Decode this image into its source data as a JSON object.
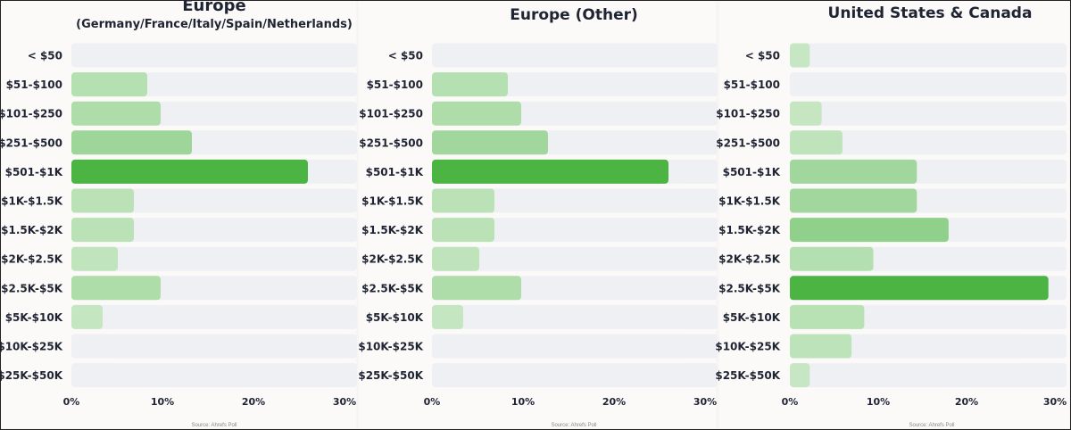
{
  "colors": {
    "track": "#eff0f4",
    "bar_strong": "#4bb443",
    "bar_light": "#c9e8c6"
  },
  "chart_data": [
    {
      "type": "bar",
      "title": "Europe",
      "subtitle": "(Germany/France/Italy/Spain/Netherlands)",
      "categories": [
        "< $50",
        "$51-$100",
        "$101-$250",
        "$251-$500",
        "$501-$1K",
        "$1K-$1.5K",
        "$1.5K-$2K",
        "$2K-$2.5K",
        "$2.5K-$5K",
        "$5K-$10K",
        "$10K-$25K",
        "$25K-$50K"
      ],
      "values": [
        0,
        8.5,
        10,
        13.5,
        26.5,
        7,
        7,
        5.2,
        10,
        3.5,
        0,
        0
      ],
      "xlim": [
        0,
        32
      ],
      "ticks": [
        "0%",
        "10%",
        "20%",
        "30%"
      ],
      "tick_values": [
        0,
        10,
        20,
        30
      ],
      "source": "Source: Ahrefs Poll"
    },
    {
      "type": "bar",
      "title": "Europe (Other)",
      "subtitle": "",
      "categories": [
        "< $50",
        "$51-$100",
        "$101-$250",
        "$251-$500",
        "$501-$1K",
        "$1K-$1.5K",
        "$1.5K-$2K",
        "$2K-$2.5K",
        "$2.5K-$5K",
        "$5K-$10K",
        "$10K-$25K",
        "$25K-$50K"
      ],
      "values": [
        0,
        8.5,
        10,
        13,
        26.5,
        7,
        7,
        5.3,
        10,
        3.5,
        0,
        0
      ],
      "xlim": [
        0,
        32
      ],
      "ticks": [
        "0%",
        "10%",
        "20%",
        "30%"
      ],
      "tick_values": [
        0,
        10,
        20,
        30
      ],
      "source": "Source: Ahrefs Poll"
    },
    {
      "type": "bar",
      "title": "United States & Canada",
      "subtitle": "",
      "categories": [
        "< $50",
        "$51-$100",
        "$101-$250",
        "$251-$500",
        "$501-$1K",
        "$1K-$1.5K",
        "$1.5K-$2K",
        "$2K-$2.5K",
        "$2.5K-$5K",
        "$5K-$10K",
        "$10K-$25K",
        "$25K-$50K"
      ],
      "values": [
        2.2,
        0,
        3.5,
        5.8,
        14,
        14,
        17.5,
        9.2,
        28.5,
        8.2,
        6.8,
        2.2
      ],
      "xlim": [
        0,
        30.5
      ],
      "ticks": [
        "0%",
        "10%",
        "20%",
        "30%"
      ],
      "tick_values": [
        0,
        10,
        20,
        30
      ],
      "source": "Source: Ahrefs Poll"
    }
  ]
}
